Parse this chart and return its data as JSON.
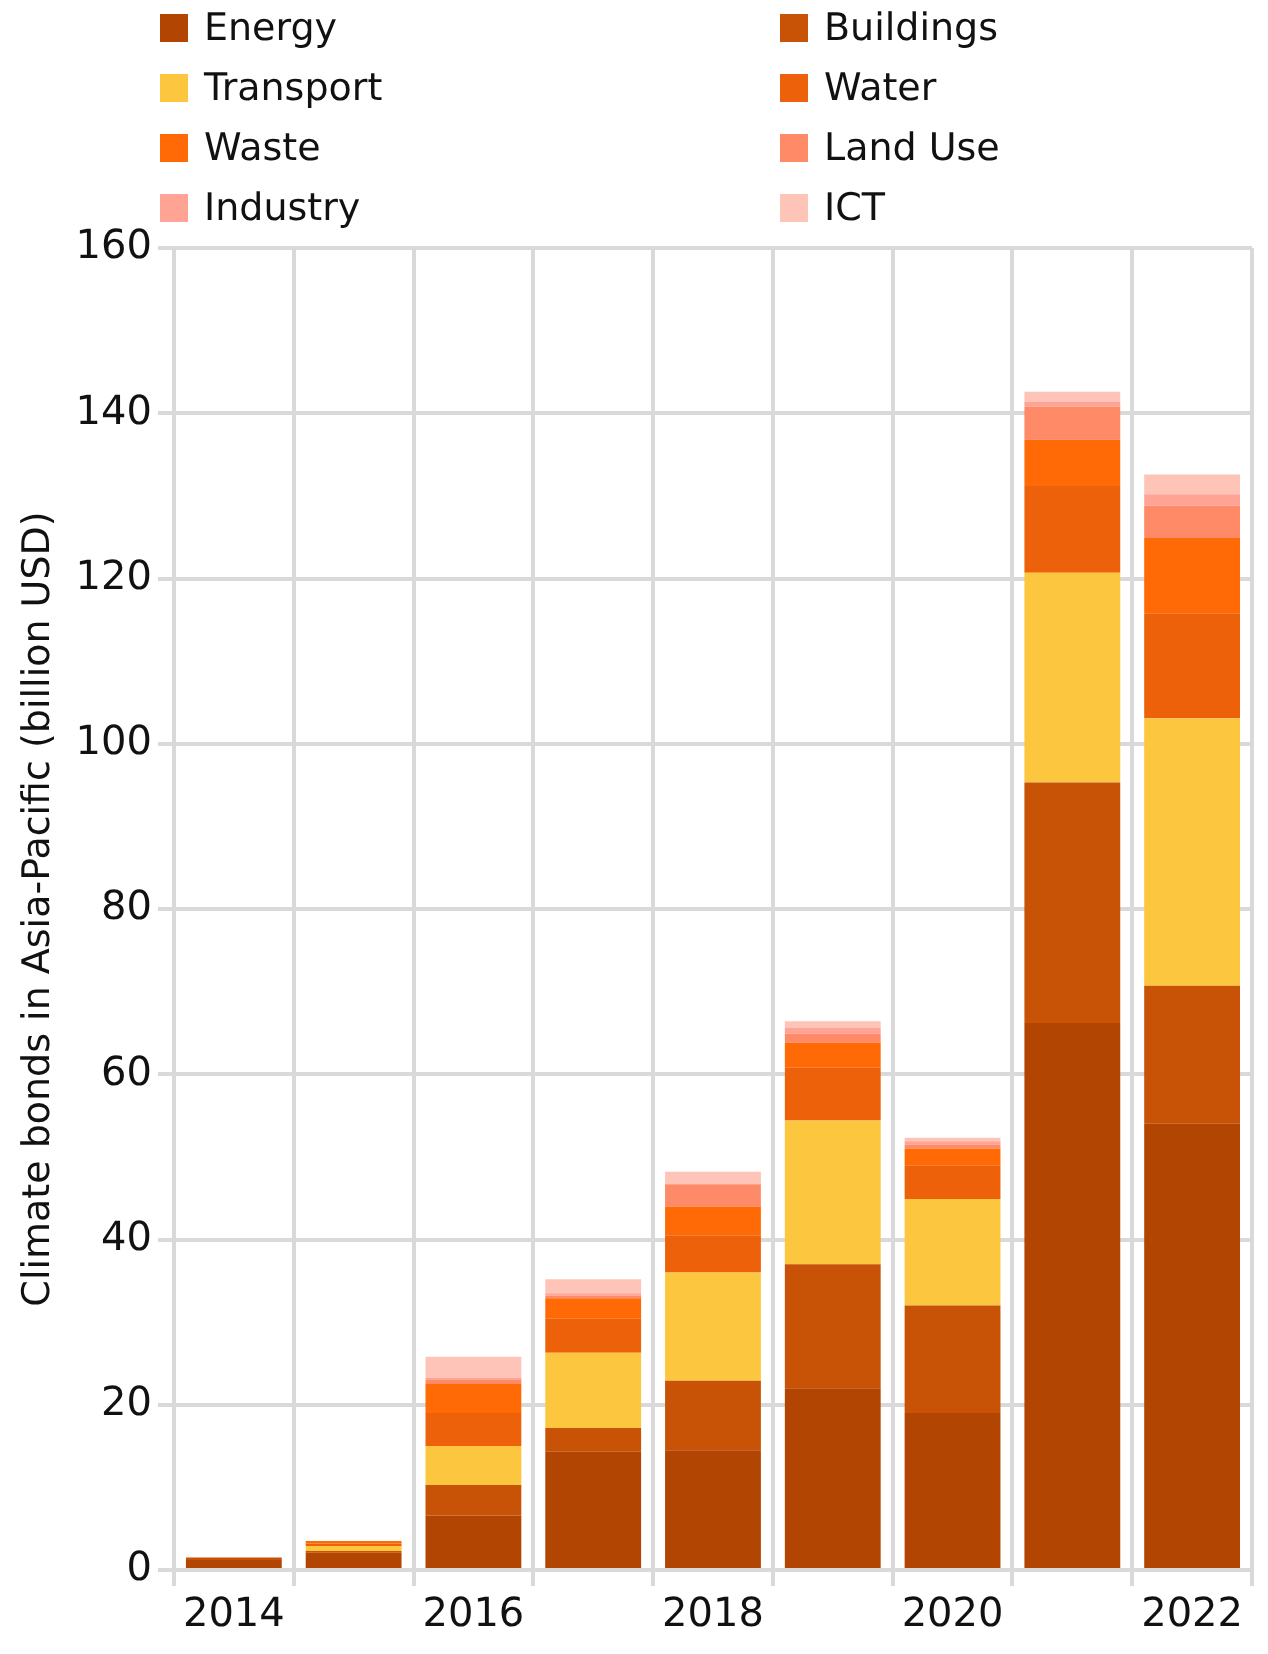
{
  "chart_data": {
    "type": "bar",
    "stacked": true,
    "ylabel": "Climate bonds in Asia-Pacific (billion USD)",
    "categories": [
      "2014",
      null,
      "2016",
      null,
      "2018",
      null,
      "2020",
      null,
      "2022"
    ],
    "series": [
      {
        "name": "Energy",
        "color": "#b34503",
        "values": [
          1.2,
          2.1,
          6.6,
          14.3,
          14.5,
          22,
          19,
          66.2,
          54
        ]
      },
      {
        "name": "Buildings",
        "color": "#c85205",
        "values": [
          0.3,
          0.2,
          3.7,
          2.9,
          8.4,
          15,
          13,
          29.1,
          16.7
        ]
      },
      {
        "name": "Transport",
        "color": "#fcc63e",
        "values": [
          0,
          0.6,
          4.7,
          9.1,
          13.1,
          17.4,
          12.9,
          25.4,
          32.4
        ]
      },
      {
        "name": "Water",
        "color": "#ec6109",
        "values": [
          0,
          0.3,
          4,
          4.1,
          4.5,
          6.4,
          4.1,
          10.5,
          12.7
        ]
      },
      {
        "name": "Waste",
        "color": "#ff6a06",
        "values": [
          0,
          0.3,
          3.5,
          2.5,
          3.5,
          3,
          2,
          5.6,
          9.1
        ]
      },
      {
        "name": "Land Use",
        "color": "#ff8a68",
        "values": [
          0,
          0,
          0.5,
          0.3,
          2.7,
          1.1,
          0.5,
          4,
          3.9
        ]
      },
      {
        "name": "Industry",
        "color": "#ffa394",
        "values": [
          0,
          0,
          0.3,
          0.3,
          0,
          0.7,
          0.4,
          0.6,
          1.4
        ]
      },
      {
        "name": "ICT",
        "color": "#ffc4b8",
        "values": [
          0,
          0,
          2.5,
          1.7,
          1.5,
          0.8,
          0.4,
          1.2,
          2.4
        ]
      }
    ],
    "ylim": [
      0,
      160
    ],
    "yticks": [
      0,
      20,
      40,
      60,
      80,
      100,
      120,
      140,
      160
    ],
    "grid": true,
    "legend": "top"
  }
}
